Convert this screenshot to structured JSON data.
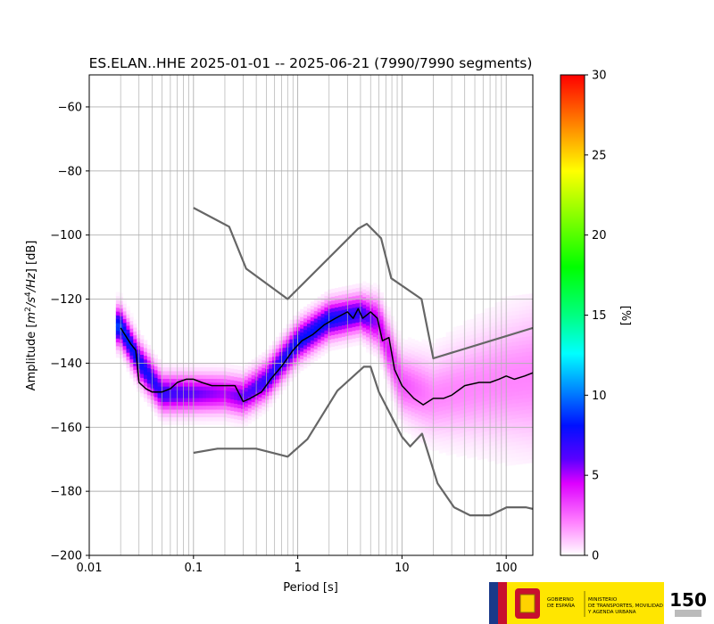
{
  "chart_data": {
    "type": "heatmap",
    "title": "ES.ELAN..HHE   2025-01-01 -- 2025-06-21  (7990/7990 segments)",
    "xlabel": "Period [s]",
    "ylabel_parts": [
      "Amplitude [",
      "m",
      "2",
      "/",
      "s",
      "4",
      "/",
      "Hz",
      "] [dB]"
    ],
    "xscale": "log",
    "xlim": [
      0.01,
      180
    ],
    "ylim": [
      -200,
      -50
    ],
    "x_ticks": [
      {
        "value": 0.01,
        "label": "0.01"
      },
      {
        "value": 0.1,
        "label": "0.1"
      },
      {
        "value": 1,
        "label": "1"
      },
      {
        "value": 10,
        "label": "10"
      },
      {
        "value": 100,
        "label": "100"
      }
    ],
    "y_ticks": [
      {
        "value": -60,
        "label": "−60"
      },
      {
        "value": -80,
        "label": "−80"
      },
      {
        "value": -100,
        "label": "−100"
      },
      {
        "value": -120,
        "label": "−120"
      },
      {
        "value": -140,
        "label": "−140"
      },
      {
        "value": -160,
        "label": "−160"
      },
      {
        "value": -180,
        "label": "−180"
      },
      {
        "value": -200,
        "label": "−200"
      }
    ],
    "grid": true,
    "colorbar": {
      "label": "[%]",
      "range": [
        0,
        30
      ],
      "ticks": [
        {
          "value": 0,
          "label": "0"
        },
        {
          "value": 5,
          "label": "5"
        },
        {
          "value": 10,
          "label": "10"
        },
        {
          "value": 15,
          "label": "15"
        },
        {
          "value": 20,
          "label": "20"
        },
        {
          "value": 25,
          "label": "25"
        },
        {
          "value": 30,
          "label": "30"
        }
      ]
    },
    "series": [
      {
        "role": "median",
        "color": "#000000",
        "points": [
          [
            0.02,
            -129
          ],
          [
            0.025,
            -134
          ],
          [
            0.028,
            -136
          ],
          [
            0.03,
            -146
          ],
          [
            0.035,
            -148
          ],
          [
            0.04,
            -149
          ],
          [
            0.05,
            -149
          ],
          [
            0.06,
            -148
          ],
          [
            0.07,
            -146
          ],
          [
            0.085,
            -145
          ],
          [
            0.1,
            -145
          ],
          [
            0.12,
            -146
          ],
          [
            0.15,
            -147
          ],
          [
            0.2,
            -147
          ],
          [
            0.25,
            -147
          ],
          [
            0.3,
            -152
          ],
          [
            0.35,
            -151
          ],
          [
            0.45,
            -149
          ],
          [
            0.55,
            -145
          ],
          [
            0.7,
            -141
          ],
          [
            0.9,
            -136
          ],
          [
            1.1,
            -133
          ],
          [
            1.4,
            -131
          ],
          [
            1.8,
            -128
          ],
          [
            2.3,
            -126
          ],
          [
            3.0,
            -124
          ],
          [
            3.4,
            -126
          ],
          [
            3.8,
            -123
          ],
          [
            4.2,
            -126
          ],
          [
            5.0,
            -124
          ],
          [
            5.8,
            -126
          ],
          [
            6.5,
            -133
          ],
          [
            7.5,
            -132
          ],
          [
            8.5,
            -142
          ],
          [
            10,
            -147
          ],
          [
            13,
            -151
          ],
          [
            16,
            -153
          ],
          [
            20,
            -151
          ],
          [
            25,
            -151
          ],
          [
            30,
            -150
          ],
          [
            40,
            -147
          ],
          [
            55,
            -146
          ],
          [
            70,
            -146
          ],
          [
            85,
            -145
          ],
          [
            100,
            -144
          ],
          [
            120,
            -145
          ],
          [
            150,
            -144
          ],
          [
            180,
            -143
          ]
        ]
      },
      {
        "role": "nlnm",
        "color": "#666666",
        "points": [
          [
            0.1,
            -168
          ],
          [
            0.17,
            -166.7
          ],
          [
            0.4,
            -166.7
          ],
          [
            0.8,
            -169.2
          ],
          [
            1.24,
            -163.7
          ],
          [
            2.4,
            -148.6
          ],
          [
            4.3,
            -141.1
          ],
          [
            5.0,
            -141.1
          ],
          [
            6.0,
            -149.0
          ],
          [
            10,
            -163.0
          ],
          [
            12,
            -166.0
          ],
          [
            15.6,
            -162.0
          ],
          [
            21.9,
            -177.5
          ],
          [
            31.6,
            -185.0
          ],
          [
            45,
            -187.5
          ],
          [
            70,
            -187.5
          ],
          [
            101,
            -185.0
          ],
          [
            154,
            -185.0
          ],
          [
            180,
            -185.5
          ]
        ]
      },
      {
        "role": "nhnm",
        "color": "#666666",
        "points": [
          [
            0.1,
            -91.5
          ],
          [
            0.22,
            -97.4
          ],
          [
            0.32,
            -110.5
          ],
          [
            0.8,
            -120.0
          ],
          [
            3.8,
            -98.0
          ],
          [
            4.6,
            -96.5
          ],
          [
            6.3,
            -101.0
          ],
          [
            7.9,
            -113.5
          ],
          [
            15.4,
            -120.0
          ],
          [
            20,
            -138.5
          ],
          [
            180,
            -129.0
          ]
        ]
      }
    ],
    "density": {
      "description_values": "percent probability per (period, dB) cell",
      "mode_band": [
        [
          0.02,
          -129,
          9
        ],
        [
          0.03,
          -140,
          8
        ],
        [
          0.05,
          -150,
          7
        ],
        [
          0.1,
          -150,
          6
        ],
        [
          0.2,
          -150,
          5
        ],
        [
          0.3,
          -151,
          6
        ],
        [
          0.5,
          -146,
          7
        ],
        [
          1,
          -134,
          8
        ],
        [
          2,
          -127,
          8
        ],
        [
          4,
          -125,
          7
        ],
        [
          6,
          -128,
          5
        ],
        [
          10,
          -147,
          3
        ],
        [
          20,
          -151,
          2
        ],
        [
          50,
          -148,
          2
        ],
        [
          100,
          -146,
          2
        ],
        [
          180,
          -145,
          2
        ]
      ]
    }
  },
  "logos": {
    "gov_lines_1": [
      "GOBIERNO",
      "DE ESPAÑA"
    ],
    "gov_lines_2": [
      "MINISTERIO",
      "DE TRANSPORTES, MOVILIDAD",
      "Y AGENDA URBANA"
    ],
    "ign_mark": "150"
  }
}
